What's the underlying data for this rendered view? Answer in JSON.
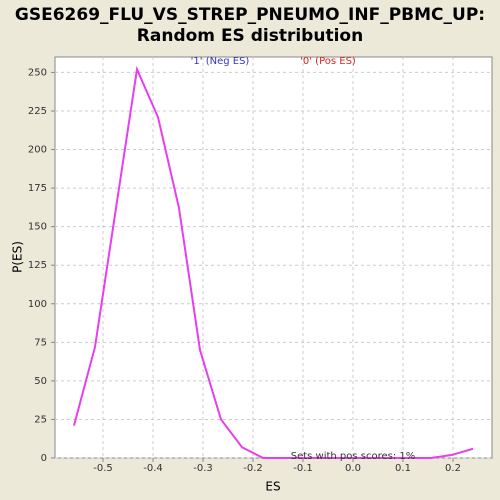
{
  "chart_data": {
    "type": "line",
    "title": "GSE6269_FLU_VS_STREP_PNEUMO_INF_PBMC_UP:",
    "subtitle": "Random ES distribution",
    "x_label": "ES",
    "y_label": "P(ES)",
    "legend": [
      {
        "name": "'1' (Neg ES)",
        "color": "#3333cc"
      },
      {
        "name": "'0' (Pos ES)",
        "color": "#dd2222"
      }
    ],
    "annotation": "Sets with pos scores: 1%",
    "x": [
      -0.558,
      -0.516,
      -0.432,
      -0.39,
      -0.348,
      -0.306,
      -0.264,
      -0.222,
      -0.18,
      -0.138,
      -0.096,
      -0.054,
      -0.012,
      0.03,
      0.072,
      0.114,
      0.156,
      0.198,
      0.24
    ],
    "series": [
      {
        "color": "#e53ff0",
        "values": [
          21,
          72,
          252,
          221,
          162,
          70,
          25,
          7,
          0,
          0,
          0,
          0,
          0,
          0,
          0,
          0,
          0,
          2,
          6
        ]
      }
    ],
    "xlim": [
      -0.596,
      0.278
    ],
    "xticks": [
      -0.5,
      -0.4,
      -0.3,
      -0.2,
      -0.1,
      {
        "value": 0,
        "label": "0.0"
      },
      0.1,
      0.2
    ],
    "ylim": [
      0,
      260
    ],
    "yticks": [
      0,
      25,
      50,
      75,
      100,
      125,
      150,
      175,
      200,
      225,
      250
    ],
    "grid": true
  }
}
